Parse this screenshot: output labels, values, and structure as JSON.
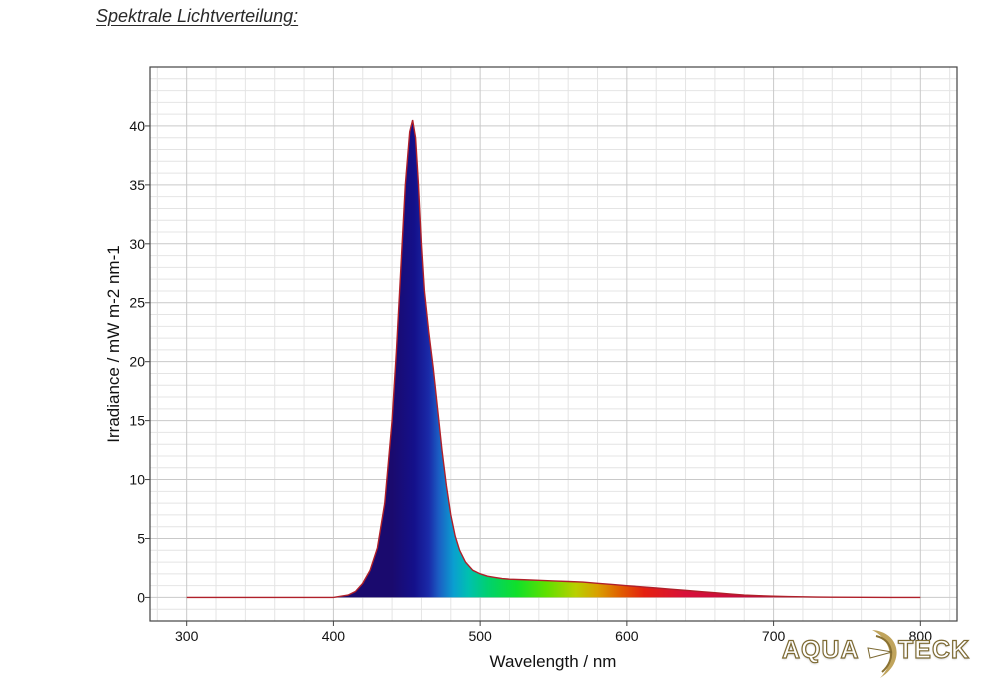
{
  "page": {
    "heading": "Spektrale Lichtverteilung:"
  },
  "logo": {
    "left": "AQUA",
    "right": "TECK"
  },
  "chart_data": {
    "type": "area",
    "title": "",
    "xlabel": "Wavelength / nm",
    "ylabel": "Irradiance / mW m-2 nm-1",
    "xlim": [
      275,
      825
    ],
    "ylim": [
      -2,
      45
    ],
    "xticks": [
      300,
      400,
      500,
      600,
      700,
      800
    ],
    "yticks": [
      0,
      5,
      10,
      15,
      20,
      25,
      30,
      35,
      40
    ],
    "grid": true,
    "legend": "none",
    "fill": "visible-spectrum gradient",
    "line_color": "#b0202a",
    "series": [
      {
        "x": [
          300,
          400,
          410,
          415,
          420,
          425,
          430,
          435,
          440,
          443,
          446,
          449,
          452,
          454,
          456,
          458,
          460,
          462,
          465,
          468,
          471,
          474,
          477,
          480,
          483,
          486,
          490,
          495,
          500,
          505,
          510,
          515,
          520,
          530,
          540,
          550,
          560,
          570,
          580,
          590,
          600,
          610,
          620,
          630,
          640,
          650,
          660,
          670,
          680,
          690,
          700,
          710,
          720,
          730,
          740,
          760,
          780,
          800
        ],
        "y": [
          0,
          0,
          0.2,
          0.5,
          1.2,
          2.3,
          4.2,
          8,
          15,
          21,
          28,
          35,
          39.5,
          40.5,
          39,
          35,
          30,
          26,
          22.5,
          19.5,
          16,
          12.5,
          9.5,
          7,
          5.2,
          4,
          3,
          2.3,
          2,
          1.8,
          1.7,
          1.6,
          1.55,
          1.5,
          1.45,
          1.4,
          1.35,
          1.3,
          1.2,
          1.1,
          1.0,
          0.9,
          0.8,
          0.7,
          0.6,
          0.5,
          0.4,
          0.3,
          0.2,
          0.15,
          0.1,
          0.07,
          0.05,
          0.03,
          0.02,
          0.01,
          0,
          0
        ]
      }
    ]
  }
}
